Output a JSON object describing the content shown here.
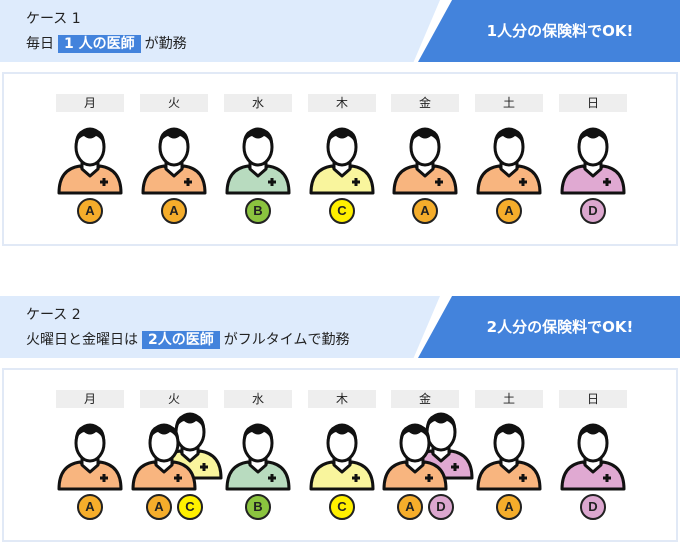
{
  "colors": {
    "A": {
      "shirt": "#f8b57f",
      "badge": "#f5ad2b"
    },
    "B": {
      "shirt": "#b8dbbf",
      "badge": "#8bc43f"
    },
    "C": {
      "shirt": "#f9f59d",
      "badge": "#fff000"
    },
    "D": {
      "shirt": "#e0a9d2",
      "badge": "#dca7cf"
    },
    "accent": "#4383dc"
  },
  "cases": [
    {
      "title": "ケース 1",
      "desc_pre": "毎日",
      "desc_highlight": "1 人の医師",
      "desc_post": "が勤務",
      "banner": "1人分の保険料でOK!",
      "days": [
        {
          "label": "月",
          "doctors": [
            "A"
          ]
        },
        {
          "label": "火",
          "doctors": [
            "A"
          ]
        },
        {
          "label": "水",
          "doctors": [
            "B"
          ]
        },
        {
          "label": "木",
          "doctors": [
            "C"
          ]
        },
        {
          "label": "金",
          "doctors": [
            "A"
          ]
        },
        {
          "label": "土",
          "doctors": [
            "A"
          ]
        },
        {
          "label": "日",
          "doctors": [
            "D"
          ]
        }
      ]
    },
    {
      "title": "ケース 2",
      "desc_pre": "火曜日と金曜日は",
      "desc_highlight": "2人の医師",
      "desc_post": "がフルタイムで勤務",
      "banner": "2人分の保険料でOK!",
      "days": [
        {
          "label": "月",
          "doctors": [
            "A"
          ]
        },
        {
          "label": "火",
          "doctors": [
            "A",
            "C"
          ]
        },
        {
          "label": "水",
          "doctors": [
            "B"
          ]
        },
        {
          "label": "木",
          "doctors": [
            "C"
          ]
        },
        {
          "label": "金",
          "doctors": [
            "A",
            "D"
          ]
        },
        {
          "label": "土",
          "doctors": [
            "A"
          ]
        },
        {
          "label": "日",
          "doctors": [
            "D"
          ]
        }
      ]
    }
  ]
}
